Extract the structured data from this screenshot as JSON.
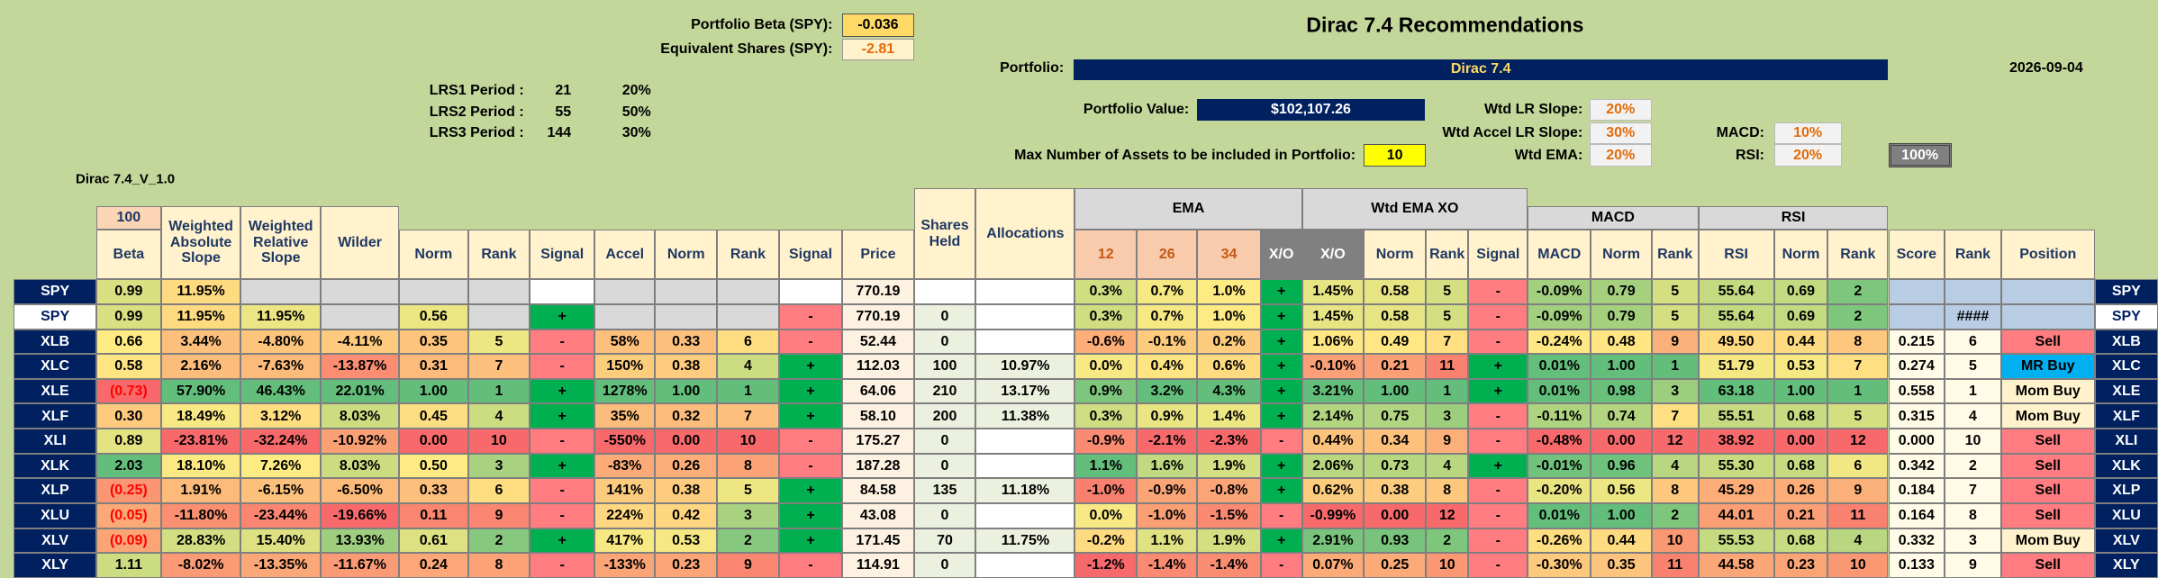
{
  "header": {
    "title": "Dirac 7.4 Recommendations",
    "version": "Dirac 7.4_V_1.0",
    "date": "2026-09-04",
    "portfolio_beta": {
      "label": "Portfolio Beta (SPY):",
      "value": "-0.036"
    },
    "equivalent_shares": {
      "label": "Equivalent Shares (SPY):",
      "value": "-2.81"
    },
    "lrs": [
      {
        "label": "LRS1 Period :",
        "period": "21",
        "weight": "20%"
      },
      {
        "label": "LRS2 Period :",
        "period": "55",
        "weight": "50%"
      },
      {
        "label": "LRS3 Period :",
        "period": "144",
        "weight": "30%"
      }
    ],
    "portfolio": {
      "label": "Portfolio:",
      "value": "Dirac 7.4"
    },
    "portfolio_value": {
      "label": "Portfolio Value:",
      "value": "$102,107.26"
    },
    "max_assets": {
      "label": "Max Number of Assets to be included in Portfolio:",
      "value": "10"
    },
    "weights": [
      {
        "label": "Wtd LR Slope:",
        "value": "20%"
      },
      {
        "label": "Wtd Accel LR Slope:",
        "value": "30%"
      },
      {
        "label": "Wtd EMA:",
        "value": "20%"
      },
      {
        "label": "MACD:",
        "value": "10%"
      },
      {
        "label": "RSI:",
        "value": "20%"
      }
    ],
    "weight_total": "100%"
  },
  "table": {
    "beta_weight": "100",
    "group_headers": [
      "EMA",
      "Wtd EMA XO",
      "MACD",
      "RSI"
    ],
    "columns": [
      "Beta",
      "Weighted Absolute Slope",
      "Weighted Relative Slope",
      "Wilder",
      "Norm",
      "Rank",
      "Signal",
      "Accel",
      "Norm",
      "Rank",
      "Signal",
      "Price",
      "Shares Held",
      "Allocations",
      "12",
      "26",
      "34",
      "X/O",
      "X/O",
      "Norm",
      "Rank",
      "Signal",
      "MACD",
      "Norm",
      "Rank",
      "RSI",
      "Norm",
      "Rank",
      "Score",
      "Rank",
      "Position"
    ],
    "rows": [
      [
        "SPY",
        "0.99",
        "11.95%",
        null,
        null,
        null,
        null,
        null,
        null,
        null,
        null,
        null,
        "770.19",
        null,
        null,
        "0.3%",
        "0.7%",
        "1.0%",
        "+",
        "1.45%",
        "0.58",
        "5",
        "-",
        "-0.09%",
        "0.79",
        "5",
        "55.64",
        "0.69",
        "2",
        null,
        null,
        null,
        "SPY"
      ],
      [
        "SPY",
        "0.99",
        "11.95%",
        "11.95%",
        null,
        "0.56",
        null,
        "+",
        null,
        null,
        null,
        "-",
        "770.19",
        "0",
        null,
        "0.3%",
        "0.7%",
        "1.0%",
        "+",
        "1.45%",
        "0.58",
        "5",
        "-",
        "-0.09%",
        "0.79",
        "5",
        "55.64",
        "0.69",
        "2",
        null,
        "####",
        null,
        "SPY"
      ],
      [
        "XLB",
        "0.66",
        "3.44%",
        "-4.80%",
        "-4.11%",
        "0.35",
        "5",
        "-",
        "58%",
        "0.33",
        "6",
        "-",
        "52.44",
        "0",
        null,
        "-0.6%",
        "-0.1%",
        "0.2%",
        "+",
        "1.06%",
        "0.49",
        "7",
        "-",
        "-0.24%",
        "0.48",
        "9",
        "49.50",
        "0.44",
        "8",
        "0.215",
        "6",
        "Sell",
        "XLB"
      ],
      [
        "XLC",
        "0.58",
        "2.16%",
        "-7.63%",
        "-13.87%",
        "0.31",
        "7",
        "-",
        "150%",
        "0.38",
        "4",
        "+",
        "112.03",
        "100",
        "10.97%",
        "0.0%",
        "0.4%",
        "0.6%",
        "+",
        "-0.10%",
        "0.21",
        "11",
        "+",
        "0.01%",
        "1.00",
        "1",
        "51.79",
        "0.53",
        "7",
        "0.274",
        "5",
        "MR Buy",
        "XLC"
      ],
      [
        "XLE",
        "(0.73)",
        "57.90%",
        "46.43%",
        "22.01%",
        "1.00",
        "1",
        "+",
        "1278%",
        "1.00",
        "1",
        "+",
        "64.06",
        "210",
        "13.17%",
        "0.9%",
        "3.2%",
        "4.3%",
        "+",
        "3.21%",
        "1.00",
        "1",
        "+",
        "0.01%",
        "0.98",
        "3",
        "63.18",
        "1.00",
        "1",
        "0.558",
        "1",
        "Mom Buy",
        "XLE"
      ],
      [
        "XLF",
        "0.30",
        "18.49%",
        "3.12%",
        "8.03%",
        "0.45",
        "4",
        "+",
        "35%",
        "0.32",
        "7",
        "+",
        "58.10",
        "200",
        "11.38%",
        "0.3%",
        "0.9%",
        "1.4%",
        "+",
        "2.14%",
        "0.75",
        "3",
        "-",
        "-0.11%",
        "0.74",
        "7",
        "55.51",
        "0.68",
        "5",
        "0.315",
        "4",
        "Mom Buy",
        "XLF"
      ],
      [
        "XLI",
        "0.89",
        "-23.81%",
        "-32.24%",
        "-10.92%",
        "0.00",
        "10",
        "-",
        "-550%",
        "0.00",
        "10",
        "-",
        "175.27",
        "0",
        null,
        "-0.9%",
        "-2.1%",
        "-2.3%",
        "-",
        "0.44%",
        "0.34",
        "9",
        "-",
        "-0.48%",
        "0.00",
        "12",
        "38.92",
        "0.00",
        "12",
        "0.000",
        "10",
        "Sell",
        "XLI"
      ],
      [
        "XLK",
        "2.03",
        "18.10%",
        "7.26%",
        "8.03%",
        "0.50",
        "3",
        "+",
        "-83%",
        "0.26",
        "8",
        "-",
        "187.28",
        "0",
        null,
        "1.1%",
        "1.6%",
        "1.9%",
        "+",
        "2.06%",
        "0.73",
        "4",
        "+",
        "-0.01%",
        "0.96",
        "4",
        "55.30",
        "0.68",
        "6",
        "0.342",
        "2",
        "Sell",
        "XLK"
      ],
      [
        "XLP",
        "(0.25)",
        "1.91%",
        "-6.15%",
        "-6.50%",
        "0.33",
        "6",
        "-",
        "141%",
        "0.38",
        "5",
        "+",
        "84.58",
        "135",
        "11.18%",
        "-1.0%",
        "-0.9%",
        "-0.8%",
        "+",
        "0.62%",
        "0.38",
        "8",
        "-",
        "-0.20%",
        "0.56",
        "8",
        "45.29",
        "0.26",
        "9",
        "0.184",
        "7",
        "Sell",
        "XLP"
      ],
      [
        "XLU",
        "(0.05)",
        "-11.80%",
        "-23.44%",
        "-19.66%",
        "0.11",
        "9",
        "-",
        "224%",
        "0.42",
        "3",
        "+",
        "43.08",
        "0",
        null,
        "0.0%",
        "-1.0%",
        "-1.5%",
        "-",
        "-0.99%",
        "0.00",
        "12",
        "-",
        "0.01%",
        "1.00",
        "2",
        "44.01",
        "0.21",
        "11",
        "0.164",
        "8",
        "Sell",
        "XLU"
      ],
      [
        "XLV",
        "(0.09)",
        "28.83%",
        "15.40%",
        "13.93%",
        "0.61",
        "2",
        "+",
        "417%",
        "0.53",
        "2",
        "+",
        "171.45",
        "70",
        "11.75%",
        "-0.2%",
        "1.1%",
        "1.9%",
        "+",
        "2.91%",
        "0.93",
        "2",
        "-",
        "-0.26%",
        "0.44",
        "10",
        "55.53",
        "0.68",
        "4",
        "0.332",
        "3",
        "Mom Buy",
        "XLV"
      ],
      [
        "XLY",
        "1.11",
        "-8.02%",
        "-13.35%",
        "-11.67%",
        "0.24",
        "8",
        "-",
        "-133%",
        "0.23",
        "9",
        "-",
        "114.91",
        "0",
        null,
        "-1.2%",
        "-1.4%",
        "-1.4%",
        "-",
        "0.07%",
        "0.25",
        "10",
        "-",
        "-0.30%",
        "0.35",
        "11",
        "44.58",
        "0.23",
        "10",
        "0.133",
        "9",
        "Sell",
        "XLY"
      ]
    ]
  }
}
